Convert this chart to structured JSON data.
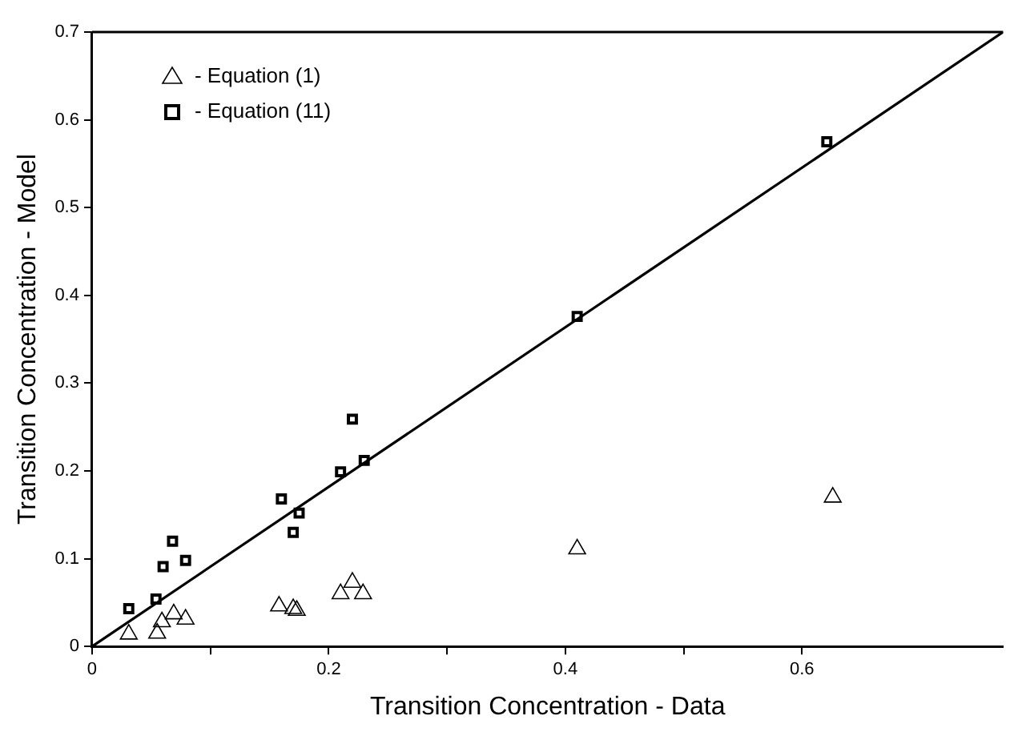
{
  "chart_data": {
    "type": "scatter",
    "xlabel": "Transition Concentration - Data",
    "ylabel": "Transition Concentration - Model",
    "xlim": [
      0,
      0.77
    ],
    "ylim": [
      0,
      0.7
    ],
    "xticks": [
      0,
      {
        "value": 0.1,
        "label": null
      },
      0.2,
      {
        "value": 0.3,
        "label": null
      },
      0.4,
      {
        "value": 0.5,
        "label": null
      },
      0.6
    ],
    "yticks": [
      0,
      0.1,
      0.2,
      0.3,
      0.4,
      0.5,
      0.6,
      0.7
    ],
    "grid": false,
    "legend": "top left",
    "series": [
      {
        "name": "- Equation (1)",
        "color": "#000000",
        "marker": "triangle",
        "x": [
          0.031,
          0.055,
          0.059,
          0.069,
          0.079,
          0.158,
          0.17,
          0.173,
          0.21,
          0.22,
          0.229,
          0.41,
          0.626
        ],
        "values": [
          0.014,
          0.015,
          0.028,
          0.037,
          0.031,
          0.046,
          0.043,
          0.041,
          0.06,
          0.073,
          0.06,
          0.111,
          0.17
        ]
      },
      {
        "name": "- Equation (11)",
        "color": "#000000",
        "marker": "square",
        "x": [
          0.031,
          0.054,
          0.06,
          0.068,
          0.079,
          0.16,
          0.17,
          0.175,
          0.21,
          0.22,
          0.23,
          0.41,
          0.621
        ],
        "values": [
          0.043,
          0.054,
          0.091,
          0.12,
          0.098,
          0.168,
          0.13,
          0.152,
          0.199,
          0.259,
          0.212,
          0.376,
          0.575
        ]
      },
      {
        "type": "line",
        "color": "#000000",
        "marker": "none",
        "line_style": "solid",
        "x": [
          0,
          0.77
        ],
        "values": [
          0,
          0.7
        ]
      }
    ]
  }
}
